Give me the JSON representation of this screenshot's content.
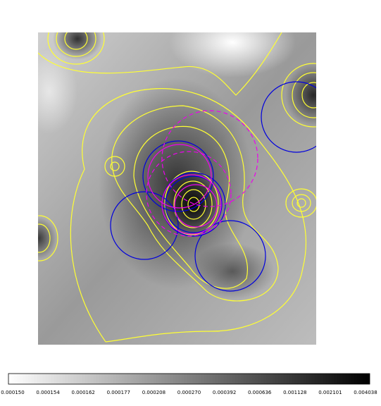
{
  "colorbar": {
    "tick_labels": [
      "0.000150",
      "0.000154",
      "0.000162",
      "0.000177",
      "0.000208",
      "0.000270",
      "0.000392",
      "0.000636",
      "0.001128",
      "0.002101",
      "0.004038"
    ]
  }
}
